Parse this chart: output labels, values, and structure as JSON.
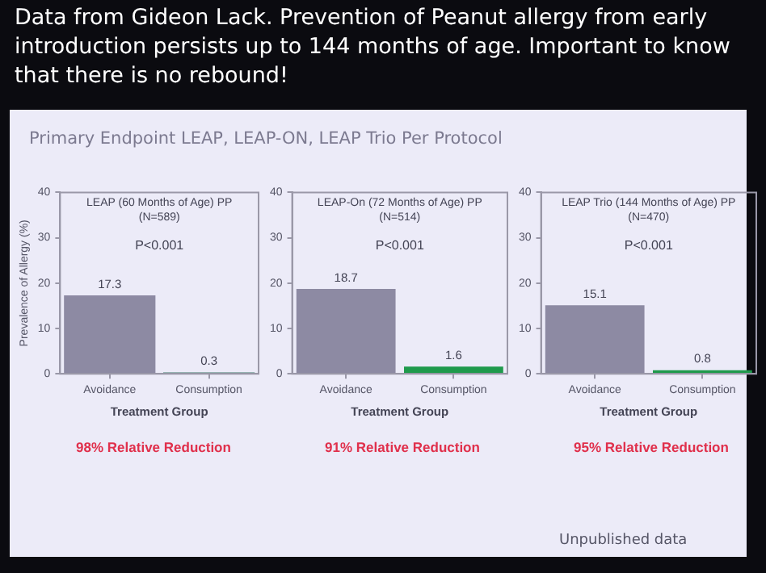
{
  "chart_data": [
    {
      "type": "other",
      "title": "Data from Gideon Lack. Prevention of Peanut allergy from early introduction persists up to 144 months of age. Important to know that there is no rebound!",
      "subtitle": "Primary Endpoint LEAP, LEAP-ON, LEAP Trio Per Protocol",
      "annotations": [
        "Unpublished data"
      ]
    },
    {
      "type": "bar",
      "title": "LEAP (60 Months of Age) PP\n(N=589)",
      "xlabel": "Treatment Group",
      "ylabel": "Prevalence of Allergy (%)",
      "categories": [
        "Avoidance",
        "Consumption"
      ],
      "values": [
        17.3,
        0.3
      ],
      "colors": [
        "#8d8aa3",
        "#3f7a6a"
      ],
      "ylim": [
        0,
        40
      ],
      "yticks": [
        0,
        10,
        20,
        30,
        40
      ],
      "data_labels": true,
      "annotations": [
        "P<0.001",
        "98% Relative Reduction"
      ]
    },
    {
      "type": "bar",
      "title": "LEAP-On (72 Months of Age) PP\n(N=514)",
      "xlabel": "Treatment Group",
      "categories": [
        "Avoidance",
        "Consumption"
      ],
      "values": [
        18.7,
        1.6
      ],
      "colors": [
        "#8d8aa3",
        "#1f9a4c"
      ],
      "ylim": [
        0,
        40
      ],
      "yticks": [
        0,
        10,
        20,
        30,
        40
      ],
      "data_labels": true,
      "annotations": [
        "P<0.001",
        "91% Relative Reduction"
      ]
    },
    {
      "type": "bar",
      "title": "LEAP Trio (144 Months of Age) PP\n(N=470)",
      "xlabel": "Treatment Group",
      "categories": [
        "Avoidance",
        "Consumption"
      ],
      "values": [
        15.1,
        0.8
      ],
      "colors": [
        "#8d8aa3",
        "#1f9a4c"
      ],
      "ylim": [
        0,
        40
      ],
      "yticks": [
        0,
        10,
        20,
        30,
        40
      ],
      "data_labels": true,
      "annotations": [
        "P<0.001",
        "95% Relative Reduction"
      ]
    }
  ]
}
